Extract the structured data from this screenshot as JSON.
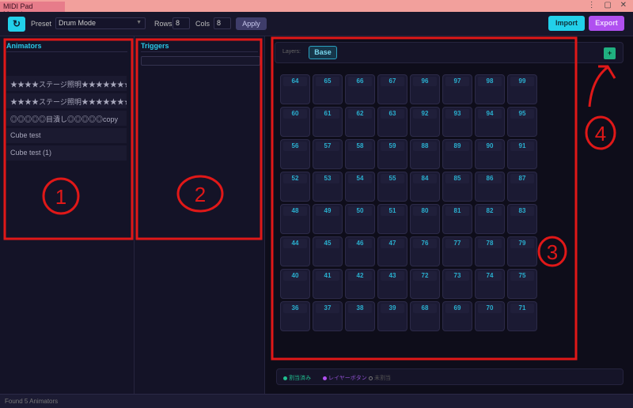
{
  "window": {
    "tab_title": "MIDI Pad Mapping",
    "controls": "⋮ ▢ ✕"
  },
  "toolbar": {
    "refresh_icon": "↻",
    "preset_label": "Preset",
    "preset_value": "Drum Mode",
    "rows_label": "Rows",
    "rows_value": "8",
    "cols_label": "Cols",
    "cols_value": "8",
    "apply_label": "Apply",
    "import_label": "Import",
    "export_label": "Export"
  },
  "colors": {
    "accent_cyan": "#22d0ea",
    "accent_purple": "#b050f0",
    "assigned": "#20c090",
    "layer": "#b050f0",
    "annotation": "#e01818"
  },
  "animators": {
    "title": "Animators",
    "items": [
      "★★★★ステージ照明★★★★★★★copy",
      "★★★★ステージ照明★★★★★★★copy",
      "◎◎◎◎◎目潰し◎◎◎◎◎copy",
      "Cube test",
      "Cube test (1)"
    ]
  },
  "triggers": {
    "title": "Triggers",
    "search_value": ""
  },
  "layers": {
    "label": "Layers:",
    "items": [
      "Base"
    ],
    "add_label": "+"
  },
  "pads": [
    [
      64,
      65,
      66,
      67,
      96,
      97,
      98,
      99
    ],
    [
      60,
      61,
      62,
      63,
      92,
      93,
      94,
      95
    ],
    [
      56,
      57,
      58,
      59,
      88,
      89,
      90,
      91
    ],
    [
      52,
      53,
      54,
      55,
      84,
      85,
      86,
      87
    ],
    [
      48,
      49,
      50,
      51,
      80,
      81,
      82,
      83
    ],
    [
      44,
      45,
      46,
      47,
      76,
      77,
      78,
      79
    ],
    [
      40,
      41,
      42,
      43,
      72,
      73,
      74,
      75
    ],
    [
      36,
      37,
      38,
      39,
      68,
      69,
      70,
      71
    ]
  ],
  "legend": {
    "assigned": "割当済み",
    "layer_button": "レイヤーボタン",
    "unassigned": "未割当"
  },
  "status": "Found 5 Animators",
  "annotations": [
    "1",
    "2",
    "3",
    "4"
  ]
}
